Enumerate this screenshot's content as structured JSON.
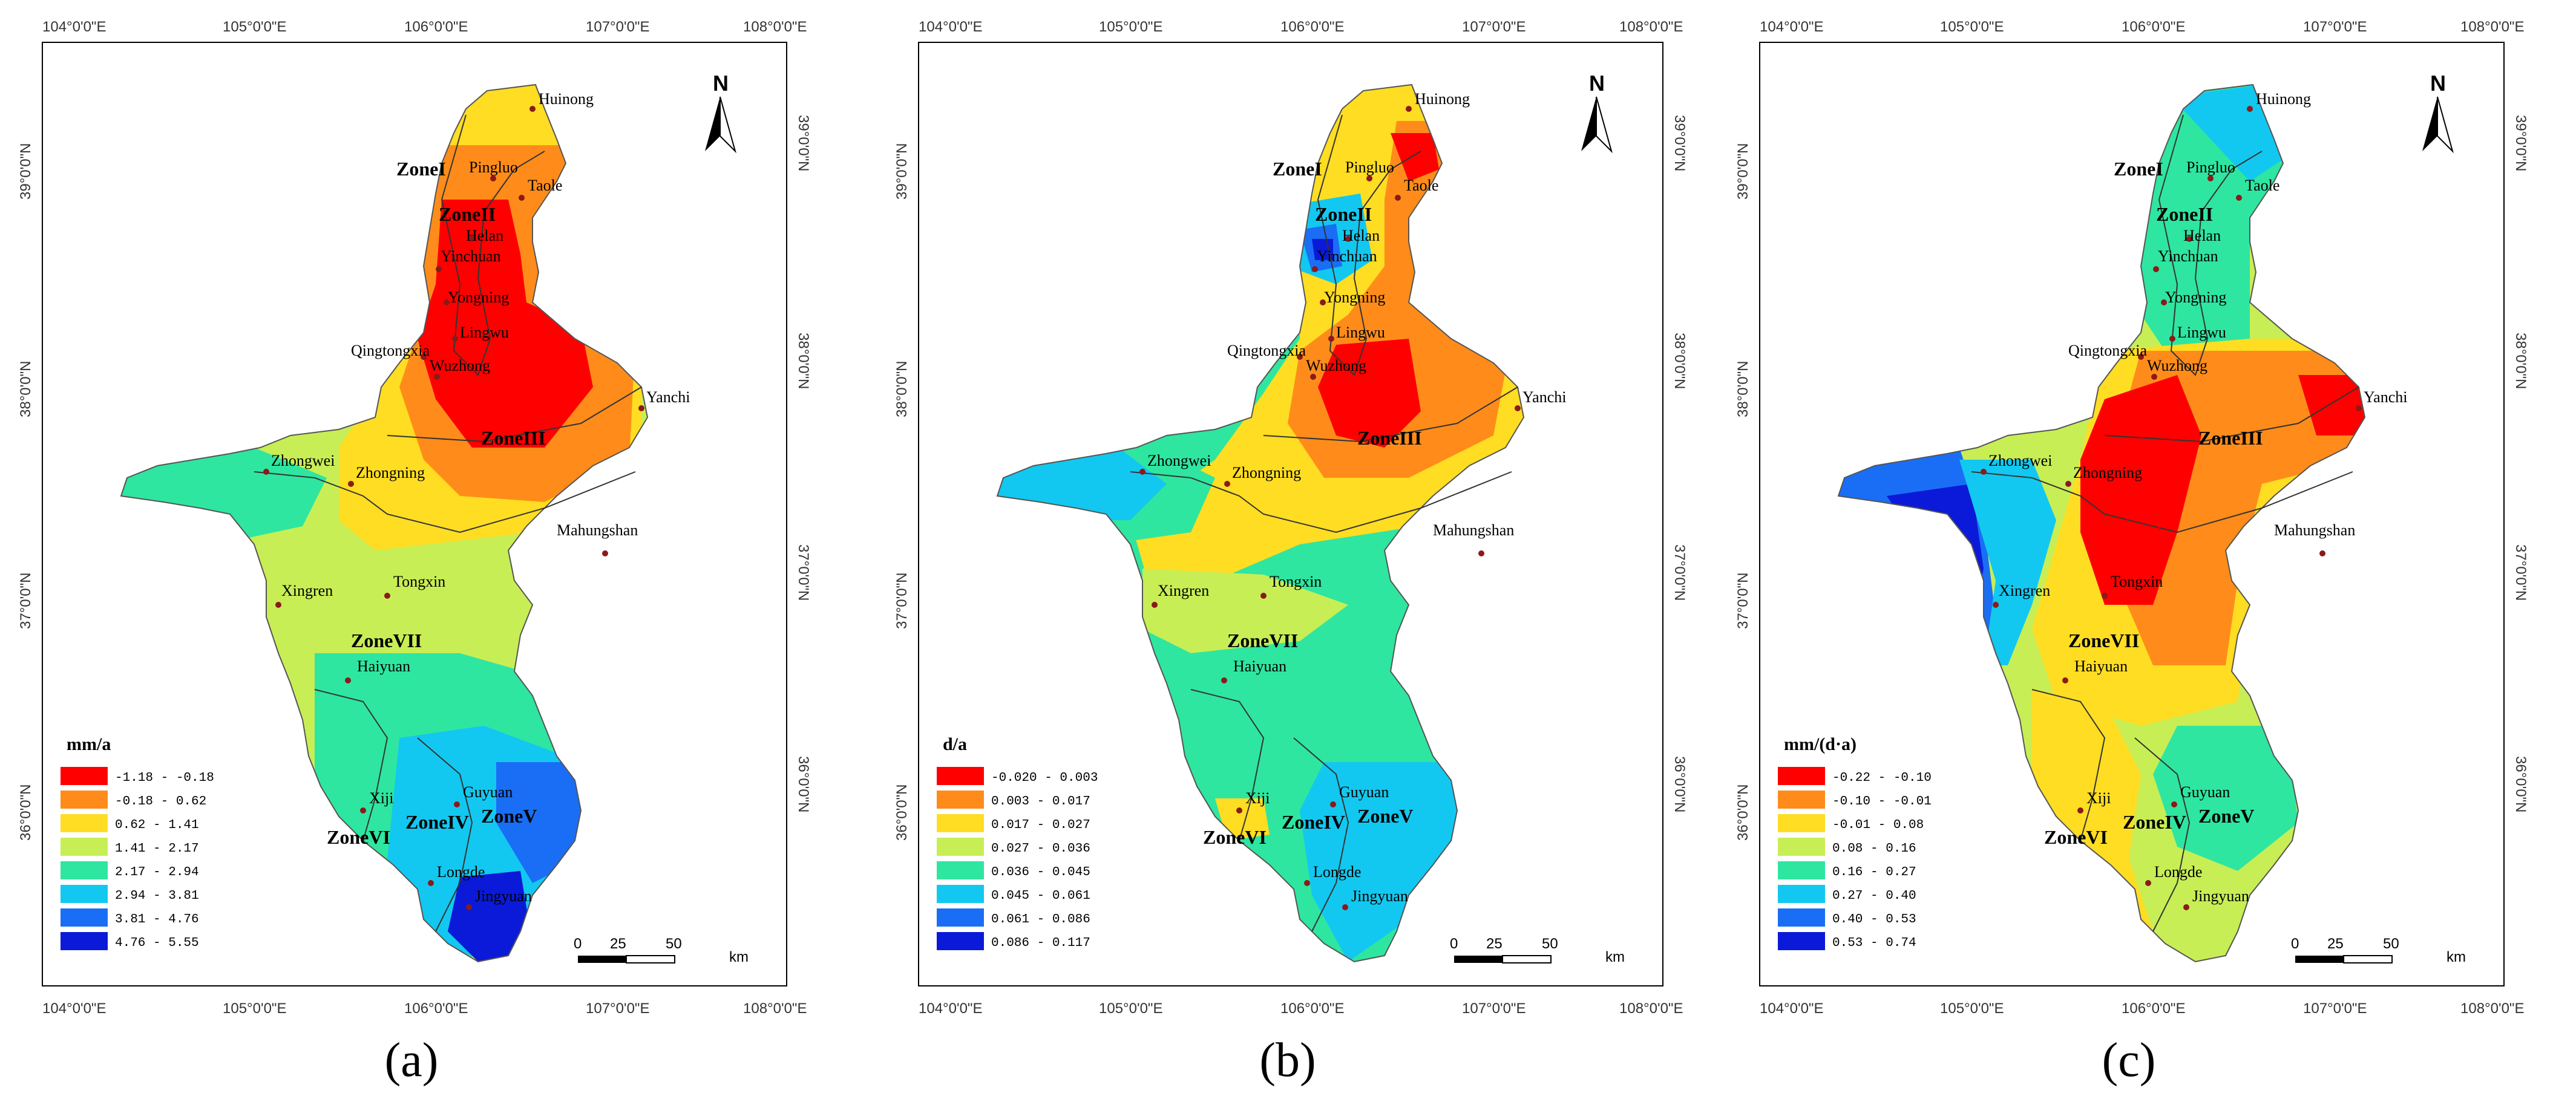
{
  "axes": {
    "lon_ticks": [
      "104°0'0\"E",
      "105°0'0\"E",
      "106°0'0\"E",
      "107°0'0\"E",
      "108°0'0\"E"
    ],
    "lat_ticks": [
      "39°0'0\"N",
      "38°0'0\"N",
      "37°0'0\"N",
      "36°0'0\"N"
    ]
  },
  "north_label": "N",
  "scale_bar": {
    "ticks": [
      "0",
      "25",
      "50"
    ],
    "unit": "km"
  },
  "cities": [
    "Huinong",
    "Pingluo",
    "Taole",
    "Helan",
    "Yinchuan",
    "Yongning",
    "Lingwu",
    "Qingtongxia",
    "Wuzhong",
    "Yanchi",
    "Zhongwei",
    "Zhongning",
    "Mahungshan",
    "Tongxin",
    "Xingren",
    "Haiyuan",
    "Xiji",
    "Guyuan",
    "Longde",
    "Jingyuan"
  ],
  "zones": [
    "ZoneI",
    "ZoneII",
    "ZoneIII",
    "ZoneIV",
    "ZoneV",
    "ZoneVI",
    "ZoneVII"
  ],
  "colors": {
    "c1": "#ff0000",
    "c2": "#ff8c1a",
    "c3": "#ffdd22",
    "c4": "#c8ee55",
    "c5": "#2ee6a0",
    "c6": "#12c8f0",
    "c7": "#1a6ef5",
    "c8": "#0a1ad8"
  },
  "panels": [
    {
      "caption": "(a)",
      "legend_title": "mm/a",
      "legend": [
        "-1.18 - -0.18",
        "-0.18 - 0.62",
        "0.62 - 1.41",
        "1.41 - 2.17",
        "2.17 - 2.94",
        "2.94 - 3.81",
        "3.81 - 4.76",
        "4.76 - 5.55"
      ]
    },
    {
      "caption": "(b)",
      "legend_title": "d/a",
      "legend": [
        "-0.020 - 0.003",
        "0.003 - 0.017",
        "0.017 - 0.027",
        "0.027 - 0.036",
        "0.036 - 0.045",
        "0.045 - 0.061",
        "0.061 - 0.086",
        "0.086 - 0.117"
      ]
    },
    {
      "caption": "(c)",
      "legend_title": "mm/(d·a)",
      "legend": [
        "-0.22 - -0.10",
        "-0.10 - -0.01",
        "-0.01 - 0.08",
        "0.08 - 0.16",
        "0.16 - 0.27",
        "0.27 - 0.40",
        "0.40 - 0.53",
        "0.53 - 0.74"
      ]
    }
  ]
}
